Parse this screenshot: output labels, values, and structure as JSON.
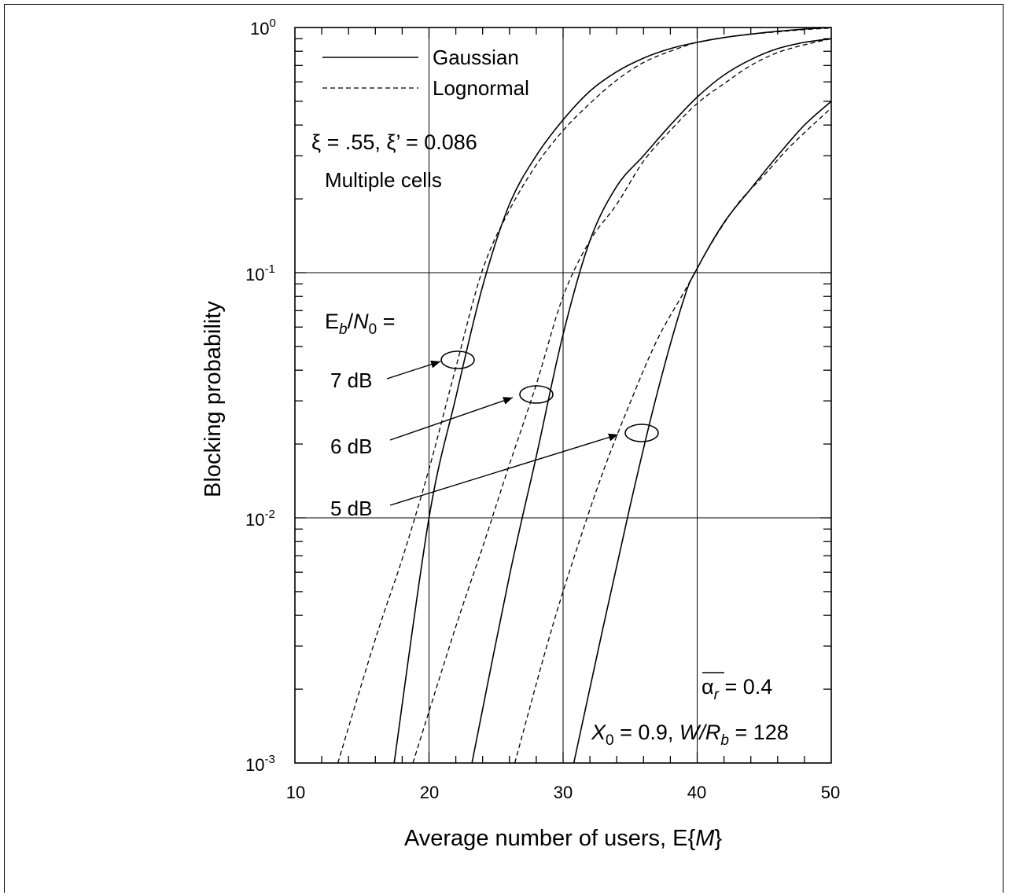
{
  "chart_data": {
    "type": "line",
    "title": "",
    "xlabel": "Average number of users, E{M}",
    "xlabel_parts": {
      "main": "Average number of users, E{",
      "italic": "M",
      "end": "}"
    },
    "ylabel": "Blocking probability",
    "xlim": [
      10,
      50
    ],
    "ylim": [
      0.001,
      1
    ],
    "y_scale": "log",
    "x_ticks": [
      "10",
      "20",
      "30",
      "40",
      "50"
    ],
    "y_ticks": [
      {
        "base": "10",
        "exp": "0"
      },
      {
        "base": "10",
        "exp": "-1"
      },
      {
        "base": "10",
        "exp": "-2"
      },
      {
        "base": "10",
        "exp": "-3"
      }
    ],
    "grid": true,
    "legend": {
      "placement": "top-left",
      "entries": [
        {
          "label": "Gaussian",
          "style": "solid"
        },
        {
          "label": "Lognormal",
          "style": "dashed"
        }
      ]
    },
    "annotations": {
      "xi": "ξ = .55, ξ’ = 0.086",
      "multiple_cells": "Multiple cells",
      "ebn0_parts": {
        "e": "E",
        "b": "b",
        "slash": "/",
        "n": "N",
        "zero": "0",
        "eq": " ="
      },
      "curve_labels": [
        "7 dB",
        "6 dB",
        "5 dB"
      ],
      "alpha_parts": {
        "alpha": "α",
        "sub": "r",
        "rest": " = 0.4"
      },
      "params_parts": {
        "x": "X",
        "x_sub": "0",
        "x_rest": " = 0.9,  ",
        "w": "W/R",
        "w_sub": "b",
        "w_rest": " = 128"
      }
    },
    "series": [
      {
        "name": "Gaussian",
        "ebn0": "7 dB",
        "style": "solid",
        "x": [
          17.4,
          20,
          22,
          24,
          26,
          28,
          30,
          32,
          34,
          36,
          38,
          40,
          42,
          44,
          46,
          48,
          50
        ],
        "y": [
          0.001,
          0.01,
          0.031,
          0.088,
          0.19,
          0.3,
          0.42,
          0.55,
          0.66,
          0.75,
          0.82,
          0.87,
          0.91,
          0.94,
          0.965,
          0.985,
          1.0
        ]
      },
      {
        "name": "Lognormal",
        "ebn0": "7 dB",
        "style": "dashed",
        "x": [
          13.2,
          16,
          18,
          20,
          22,
          24,
          26,
          28,
          30,
          32,
          34,
          36,
          38,
          40,
          42,
          44,
          46,
          48,
          50
        ],
        "y": [
          0.001,
          0.0032,
          0.0068,
          0.0158,
          0.041,
          0.103,
          0.18,
          0.275,
          0.38,
          0.49,
          0.61,
          0.72,
          0.8,
          0.87,
          0.91,
          0.94,
          0.96,
          0.98,
          0.995
        ]
      },
      {
        "name": "Gaussian",
        "ebn0": "6 dB",
        "style": "solid",
        "x": [
          23.2,
          26,
          28,
          30,
          32,
          34,
          36,
          38,
          40,
          42,
          44,
          46,
          48,
          50
        ],
        "y": [
          0.001,
          0.0058,
          0.0178,
          0.056,
          0.135,
          0.225,
          0.3,
          0.4,
          0.52,
          0.64,
          0.74,
          0.82,
          0.87,
          0.9
        ]
      },
      {
        "name": "Lognormal",
        "ebn0": "6 dB",
        "style": "dashed",
        "x": [
          18.8,
          22,
          24,
          26,
          28,
          30,
          32,
          34,
          36,
          38,
          40,
          42,
          44,
          46,
          48,
          50
        ],
        "y": [
          0.001,
          0.0036,
          0.0076,
          0.0165,
          0.035,
          0.08,
          0.135,
          0.19,
          0.285,
          0.38,
          0.49,
          0.59,
          0.7,
          0.79,
          0.85,
          0.9
        ]
      },
      {
        "name": "Gaussian",
        "ebn0": "5 dB",
        "style": "solid",
        "x": [
          30.8,
          33,
          35,
          37,
          39,
          40,
          42,
          44,
          46,
          48,
          50
        ],
        "y": [
          0.001,
          0.0036,
          0.0112,
          0.032,
          0.078,
          0.104,
          0.16,
          0.22,
          0.3,
          0.4,
          0.5
        ]
      },
      {
        "name": "Lognormal",
        "ebn0": "5 dB",
        "style": "dashed",
        "x": [
          26.4,
          29,
          31,
          33,
          35,
          37,
          39,
          41,
          43,
          45,
          47,
          50
        ],
        "y": [
          0.001,
          0.0033,
          0.0074,
          0.0155,
          0.0295,
          0.053,
          0.083,
          0.13,
          0.19,
          0.25,
          0.33,
          0.47
        ]
      }
    ]
  }
}
